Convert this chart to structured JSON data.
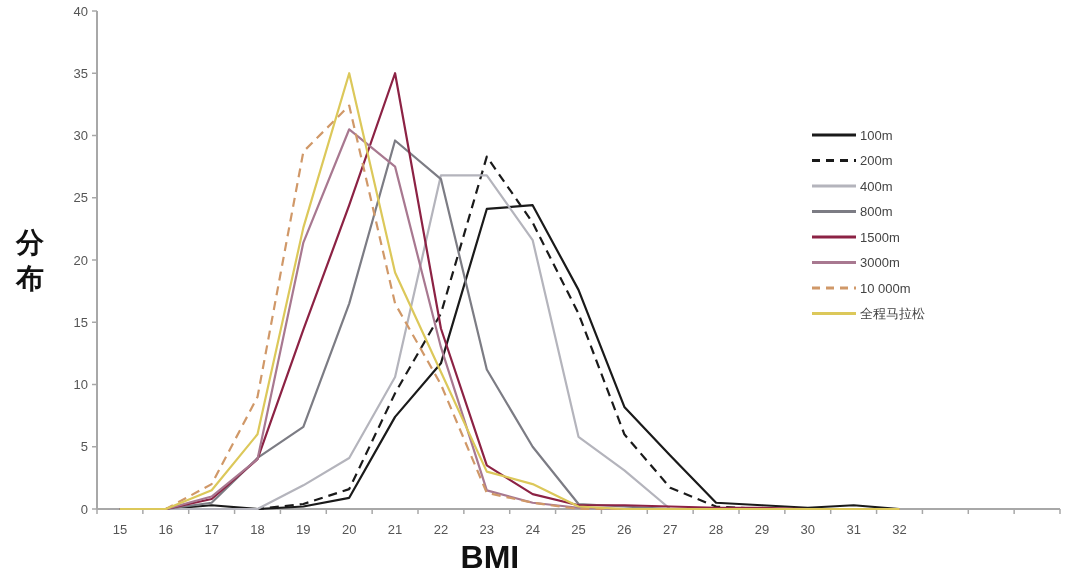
{
  "chart_data": {
    "type": "line",
    "xlabel": "BMI",
    "ylabel": "分布",
    "categories": [
      "15",
      "16",
      "17",
      "18",
      "19",
      "20",
      "21",
      "22",
      "23",
      "24",
      "25",
      "26",
      "27",
      "28",
      "29",
      "30",
      "31",
      "32",
      null,
      null,
      null
    ],
    "ylim": [
      0,
      40
    ],
    "yticks": [
      0,
      5,
      10,
      15,
      20,
      25,
      30,
      35,
      40
    ],
    "legend": "top right",
    "series": [
      {
        "name": "100m",
        "color": "#1a1a1a",
        "line_style": "solid",
        "values": [
          0,
          0,
          0.3,
          0,
          0.2,
          0.9,
          7.4,
          11.7,
          24.1,
          24.4,
          17.6,
          8.2,
          4.3,
          0.5,
          0.3,
          0.1,
          0.3,
          0,
          null,
          null,
          null
        ]
      },
      {
        "name": "200m",
        "color": "#1a1a1a",
        "line_style": "dashed",
        "values": [
          0,
          0,
          0,
          0,
          0.4,
          1.6,
          9.3,
          15.7,
          28.3,
          23,
          15.7,
          6,
          1.7,
          0.2,
          0,
          0,
          0,
          0,
          null,
          null,
          null
        ]
      },
      {
        "name": "400m",
        "color": "#b4b4bc",
        "line_style": "solid",
        "values": [
          0,
          0,
          0,
          0,
          1.9,
          4.1,
          10.6,
          26.8,
          26.8,
          21.6,
          5.8,
          3.1,
          0,
          0,
          0,
          0,
          0,
          0,
          null,
          null,
          null
        ]
      },
      {
        "name": "800m",
        "color": "#7c7c84",
        "line_style": "solid",
        "values": [
          0,
          0,
          0.5,
          4.1,
          6.6,
          16.5,
          29.6,
          26.5,
          11.2,
          5,
          0.4,
          0.2,
          0,
          0,
          0,
          0,
          0,
          0,
          null,
          null,
          null
        ]
      },
      {
        "name": "1500m",
        "color": "#8c2244",
        "line_style": "solid",
        "values": [
          0,
          0,
          0.8,
          4,
          14.4,
          24.4,
          35,
          14.5,
          3.5,
          1.2,
          0.3,
          0.3,
          0.2,
          0.1,
          0.1,
          0,
          null,
          null,
          null,
          null,
          null
        ]
      },
      {
        "name": "3000m",
        "color": "#a87890",
        "line_style": "solid",
        "values": [
          0,
          0,
          1,
          4,
          21.4,
          30.5,
          27.5,
          13,
          1.5,
          0.5,
          0.1,
          0,
          0,
          0,
          0,
          0,
          0,
          0,
          null,
          null,
          null
        ]
      },
      {
        "name": "10 000m",
        "color": "#d09868",
        "line_style": "dashed",
        "values": [
          0,
          0,
          2,
          9,
          28.7,
          32.4,
          16.5,
          10,
          1.3,
          0.5,
          0,
          0,
          0,
          0,
          0,
          0,
          0,
          0,
          null,
          null,
          null
        ]
      },
      {
        "name": "全程马拉松",
        "color": "#dcc85a",
        "line_style": "solid",
        "values": [
          0,
          0,
          1.5,
          6,
          22.6,
          35,
          19,
          11,
          3,
          2,
          0.2,
          0,
          0,
          0,
          0,
          0,
          0,
          0,
          null,
          null,
          null
        ]
      }
    ]
  }
}
